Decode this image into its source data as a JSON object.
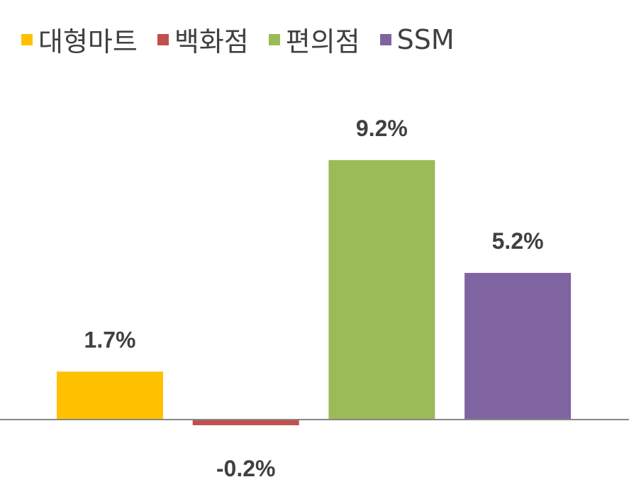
{
  "chart_data": {
    "type": "bar",
    "categories": [
      "대형마트",
      "백화점",
      "편의점",
      "SSM"
    ],
    "values": [
      1.7,
      -0.2,
      9.2,
      5.2
    ],
    "data_labels": [
      "1.7%",
      "-0.2%",
      "9.2%",
      "5.2%"
    ],
    "colors": [
      "#FFC000",
      "#C0504D",
      "#9BBB59",
      "#8064A2"
    ],
    "legend": [
      "대형마트",
      "백화점",
      "편의점",
      "SSM"
    ],
    "legend_position": "top-left",
    "grid": false,
    "ylim": [
      -0.2,
      9.2
    ]
  }
}
